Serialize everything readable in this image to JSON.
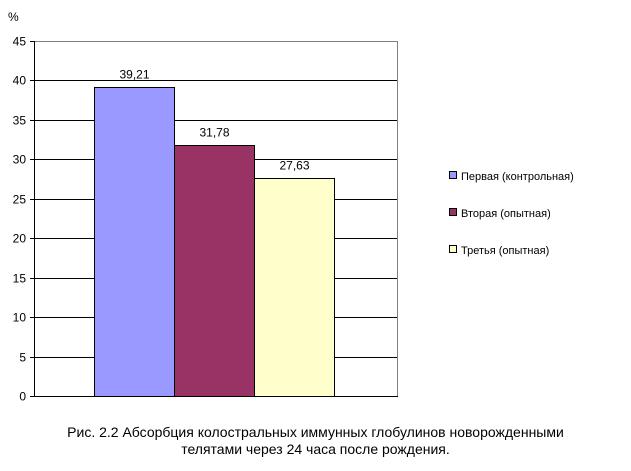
{
  "chart_data": {
    "type": "bar",
    "title": "",
    "ylabel": "%",
    "xlabel": "",
    "ylim": [
      0,
      45
    ],
    "yticks": [
      0,
      5,
      10,
      15,
      20,
      25,
      30,
      35,
      40,
      45
    ],
    "grid": true,
    "legend_position": "right",
    "series": [
      {
        "name": "Первая (контрольная)",
        "value": 39.21,
        "label": "39,21",
        "color": "#9999ff"
      },
      {
        "name": "Вторая (опытная)",
        "value": 31.78,
        "label": "31,78",
        "color": "#993366"
      },
      {
        "name": "Третья (опытная)",
        "value": 27.63,
        "label": "27,63",
        "color": "#ffffcc"
      }
    ]
  },
  "caption": {
    "line1": "Рис. 2.2 Абсорбция колостральных иммунных глобулинов новорожденными",
    "line2": "телятами через 24 часа после рождения."
  }
}
